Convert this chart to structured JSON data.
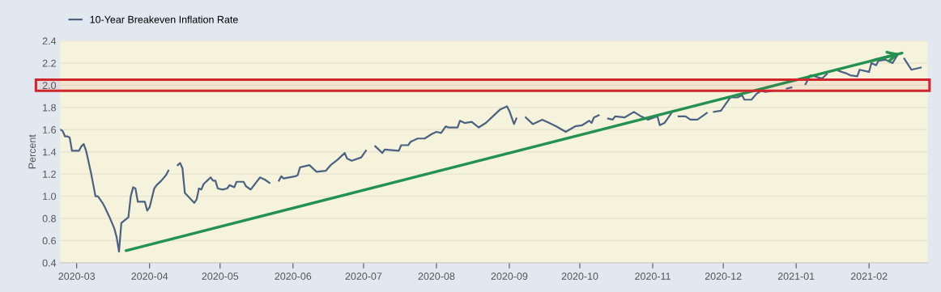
{
  "chart_data": {
    "type": "line",
    "ylabel": "Percent",
    "legend": "top left",
    "grid": "y",
    "marker": "none",
    "line_style": "solid",
    "xlim": [
      "2020-02-23",
      "2021-02-26"
    ],
    "xticks": [
      {
        "value": "2020-03-01",
        "label": "2020-03"
      },
      {
        "value": "2020-04-01",
        "label": "2020-04"
      },
      {
        "value": "2020-05-01",
        "label": "2020-05"
      },
      {
        "value": "2020-06-01",
        "label": "2020-06"
      },
      {
        "value": "2020-07-01",
        "label": "2020-07"
      },
      {
        "value": "2020-08-01",
        "label": "2020-08"
      },
      {
        "value": "2020-09-01",
        "label": "2020-09"
      },
      {
        "value": "2020-10-01",
        "label": "2020-10"
      },
      {
        "value": "2020-11-01",
        "label": "2020-11"
      },
      {
        "value": "2020-12-01",
        "label": "2020-12"
      },
      {
        "value": "2021-01-01",
        "label": "2021-01"
      },
      {
        "value": "2021-02-01",
        "label": "2021-02"
      }
    ],
    "ylim": [
      0.4,
      2.4
    ],
    "yticks": [
      {
        "value": 0.4,
        "label": "0.4"
      },
      {
        "value": 0.6,
        "label": "0.6"
      },
      {
        "value": 0.8,
        "label": "0.8"
      },
      {
        "value": 1.0,
        "label": "1.0"
      },
      {
        "value": 1.2,
        "label": "1.2"
      },
      {
        "value": 1.4,
        "label": "1.4"
      },
      {
        "value": 1.6,
        "label": "1.6"
      },
      {
        "value": 1.8,
        "label": "1.8"
      },
      {
        "value": 2.0,
        "label": "2.0"
      },
      {
        "value": 2.2,
        "label": "2.2"
      },
      {
        "value": 2.4,
        "label": "2.4"
      }
    ],
    "bands": [
      {
        "axis": "y",
        "from": 1.95,
        "to": 2.05,
        "color": "#d0272d"
      }
    ],
    "series": [
      {
        "name": "10-Year Breakeven Inflation Rate",
        "color": "#4b6282",
        "x": [
          "2020-02-23",
          "2020-02-24",
          "2020-02-25",
          "2020-02-26",
          "2020-02-27",
          "2020-02-28",
          "2020-03-02",
          "2020-03-03",
          "2020-03-04",
          "2020-03-05",
          "2020-03-07",
          "2020-03-09",
          "2020-03-10",
          "2020-03-12",
          "2020-03-13",
          "2020-03-15",
          "2020-03-17",
          "2020-03-18",
          "2020-03-19",
          "2020-03-20",
          "2020-03-23",
          "2020-03-24",
          "2020-03-25",
          "2020-03-26",
          "2020-03-27",
          "2020-03-30",
          "2020-03-31",
          "2020-04-01",
          "2020-04-03",
          "2020-04-04",
          "2020-04-06",
          "2020-04-08",
          "2020-04-09",
          "2020-04-11",
          "2020-04-13",
          "2020-04-14",
          "2020-04-15",
          "2020-04-16",
          "2020-04-20",
          "2020-04-21",
          "2020-04-22",
          "2020-04-23",
          "2020-04-24",
          "2020-04-27",
          "2020-04-28",
          "2020-04-29",
          "2020-04-30",
          "2020-05-02",
          "2020-05-04",
          "2020-05-05",
          "2020-05-07",
          "2020-05-08",
          "2020-05-11",
          "2020-05-12",
          "2020-05-14",
          "2020-05-18",
          "2020-05-19",
          "2020-05-20",
          "2020-05-22",
          "2020-05-24",
          "2020-05-26",
          "2020-05-27",
          "2020-05-28",
          "2020-06-02",
          "2020-06-03",
          "2020-06-04",
          "2020-06-08",
          "2020-06-09",
          "2020-06-11",
          "2020-06-15",
          "2020-06-17",
          "2020-06-20",
          "2020-06-23",
          "2020-06-24",
          "2020-06-26",
          "2020-06-30",
          "2020-07-02",
          "2020-07-04",
          "2020-07-06",
          "2020-07-07",
          "2020-07-09",
          "2020-07-10",
          "2020-07-16",
          "2020-07-17",
          "2020-07-20",
          "2020-07-21",
          "2020-07-24",
          "2020-07-27",
          "2020-07-30",
          "2020-08-01",
          "2020-08-03",
          "2020-08-05",
          "2020-08-06",
          "2020-08-10",
          "2020-08-11",
          "2020-08-13",
          "2020-08-16",
          "2020-08-19",
          "2020-08-22",
          "2020-08-25",
          "2020-08-28",
          "2020-08-31",
          "2020-09-01",
          "2020-09-03",
          "2020-09-04",
          "2020-09-06",
          "2020-09-08",
          "2020-09-11",
          "2020-09-15",
          "2020-09-18",
          "2020-09-21",
          "2020-09-25",
          "2020-09-29",
          "2020-10-02",
          "2020-10-05",
          "2020-10-06",
          "2020-10-07",
          "2020-10-09",
          "2020-10-11",
          "2020-10-13",
          "2020-10-15",
          "2020-10-16",
          "2020-10-20",
          "2020-10-24",
          "2020-10-27",
          "2020-10-30",
          "2020-11-03",
          "2020-11-04",
          "2020-11-06",
          "2020-11-09",
          "2020-11-10",
          "2020-11-12",
          "2020-11-15",
          "2020-11-17",
          "2020-11-20",
          "2020-11-22",
          "2020-11-24",
          "2020-11-25",
          "2020-11-27",
          "2020-11-30",
          "2020-12-03",
          "2020-12-04",
          "2020-12-07",
          "2020-12-09",
          "2020-12-10",
          "2020-12-13",
          "2020-12-15",
          "2020-12-17",
          "2020-12-19",
          "2020-12-22",
          "2020-12-25",
          "2020-12-28",
          "2020-12-30",
          "2021-01-02",
          "2021-01-05",
          "2021-01-07",
          "2021-01-09",
          "2021-01-12",
          "2021-01-14",
          "2021-01-17",
          "2021-01-19",
          "2021-01-22",
          "2021-01-24",
          "2021-01-27",
          "2021-01-28",
          "2021-02-01",
          "2021-02-02",
          "2021-02-04",
          "2021-02-05",
          "2021-02-08",
          "2021-02-11",
          "2021-02-13",
          "2021-02-14",
          "2021-02-16",
          "2021-02-19",
          "2021-02-23"
        ],
        "values": [
          1.6,
          1.59,
          1.54,
          1.54,
          1.53,
          1.41,
          1.41,
          1.45,
          1.47,
          1.41,
          1.22,
          1.0,
          1.0,
          0.94,
          0.9,
          0.81,
          0.71,
          0.63,
          0.5,
          0.76,
          0.81,
          1.0,
          1.08,
          1.07,
          0.95,
          0.95,
          0.87,
          0.9,
          1.07,
          1.1,
          1.14,
          1.19,
          1.23,
          null,
          1.28,
          1.3,
          1.25,
          1.03,
          0.94,
          0.97,
          1.07,
          1.06,
          1.11,
          1.17,
          1.14,
          1.14,
          1.07,
          1.06,
          1.07,
          1.1,
          1.08,
          1.13,
          1.13,
          1.09,
          1.06,
          1.17,
          1.16,
          1.15,
          1.12,
          null,
          1.14,
          1.18,
          1.16,
          1.18,
          1.19,
          1.26,
          1.28,
          1.26,
          1.22,
          1.23,
          1.28,
          1.33,
          1.39,
          1.34,
          1.32,
          1.35,
          1.41,
          null,
          1.45,
          1.43,
          1.39,
          1.42,
          1.41,
          1.46,
          1.46,
          1.49,
          1.52,
          1.52,
          1.56,
          1.58,
          1.57,
          1.63,
          1.62,
          1.62,
          1.68,
          1.66,
          1.67,
          1.62,
          1.66,
          1.72,
          1.78,
          1.81,
          1.77,
          1.65,
          1.7,
          null,
          1.71,
          1.65,
          1.69,
          1.66,
          1.63,
          1.58,
          1.63,
          1.64,
          1.68,
          1.66,
          1.71,
          1.73,
          null,
          1.7,
          1.69,
          1.72,
          1.71,
          1.76,
          1.72,
          1.69,
          1.72,
          1.64,
          1.66,
          1.75,
          null,
          1.72,
          1.72,
          1.69,
          1.69,
          1.72,
          1.75,
          null,
          1.76,
          1.77,
          1.86,
          1.89,
          1.89,
          1.91,
          1.87,
          1.87,
          1.92,
          1.95,
          1.94,
          1.95,
          null,
          1.97,
          1.98,
          null,
          2.01,
          2.09,
          2.08,
          2.06,
          2.1,
          null,
          2.13,
          2.11,
          2.09,
          2.08,
          2.14,
          2.12,
          2.2,
          2.18,
          2.22,
          2.23,
          2.2,
          2.27,
          null,
          2.24,
          2.14,
          2.16
        ]
      },
      {
        "type": "line",
        "color": "#23914f",
        "x": [
          "2020-03-22",
          "2021-02-15"
        ],
        "values": [
          0.51,
          2.29
        ]
      }
    ]
  }
}
